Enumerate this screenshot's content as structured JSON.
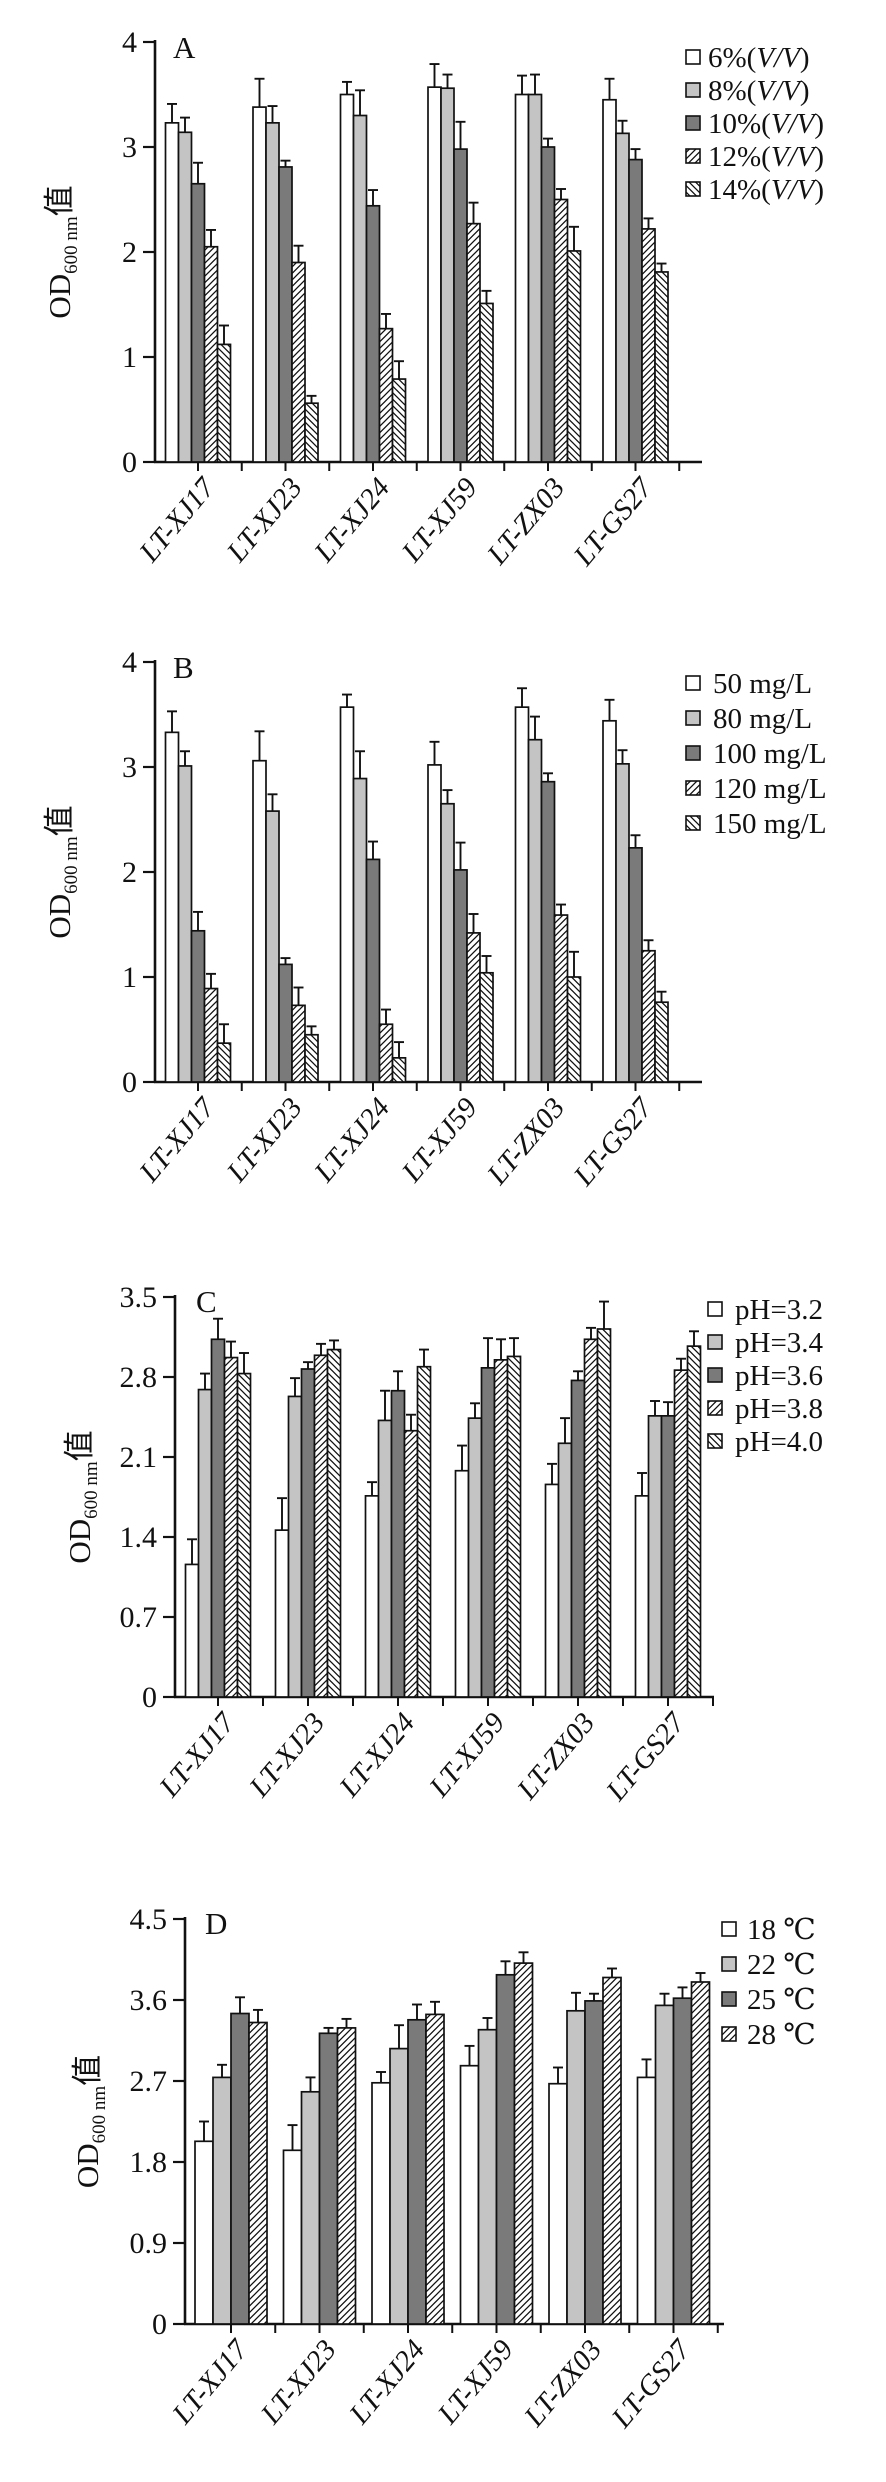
{
  "figure": {
    "background": "#ffffff",
    "text_color": "#111111",
    "y_axis_label": {
      "main": "OD",
      "sub": "600 nm",
      "suffix": "值"
    },
    "categories": [
      "LT-XJ17",
      "LT-XJ23",
      "LT-XJ24",
      "LT-XJ59",
      "LT-ZX03",
      "LT-GS27"
    ],
    "colors": {
      "bar_white": "#ffffff",
      "bar_light_gray": "#c4c4c4",
      "bar_dark_gray": "#7a7a7a",
      "stroke": "#111111"
    }
  },
  "chart_data": [
    {
      "type": "bar",
      "panel_label": "A",
      "title": "Ethanol tolerance (OD600 by ethanol %, V/V)",
      "xlabel": "",
      "ylabel": "OD600 nm 值",
      "ylim": [
        0,
        4
      ],
      "yticks": [
        0,
        1,
        2,
        3,
        4
      ],
      "ytick_labels": [
        "0",
        "1",
        "2",
        "3",
        "4"
      ],
      "grid": false,
      "legend_position": "top-right",
      "error_bars": "plus",
      "categories": [
        "LT-XJ17",
        "LT-XJ23",
        "LT-XJ24",
        "LT-XJ59",
        "LT-ZX03",
        "LT-GS27"
      ],
      "series": [
        {
          "pre": "6%(",
          "italic": "V/V",
          "post": ")",
          "fill": "#ffffff",
          "pattern": "none",
          "values": [
            3.23,
            3.38,
            3.5,
            3.57,
            3.5,
            3.45
          ],
          "errors": [
            0.18,
            0.27,
            0.12,
            0.22,
            0.18,
            0.2
          ]
        },
        {
          "pre": "8%(",
          "italic": "V/V",
          "post": ")",
          "fill": "#c4c4c4",
          "pattern": "none",
          "values": [
            3.14,
            3.23,
            3.3,
            3.56,
            3.5,
            3.13
          ],
          "errors": [
            0.14,
            0.16,
            0.24,
            0.13,
            0.19,
            0.12
          ]
        },
        {
          "pre": "10%(",
          "italic": "V/V",
          "post": ")",
          "fill": "#7a7a7a",
          "pattern": "none",
          "values": [
            2.65,
            2.81,
            2.44,
            2.98,
            3.0,
            2.88
          ],
          "errors": [
            0.2,
            0.06,
            0.15,
            0.26,
            0.08,
            0.1
          ]
        },
        {
          "pre": "12%(",
          "italic": "V/V",
          "post": ")",
          "fill": "#ffffff",
          "pattern": "diag-up",
          "values": [
            2.05,
            1.9,
            1.27,
            2.27,
            2.5,
            2.22
          ],
          "errors": [
            0.16,
            0.16,
            0.14,
            0.2,
            0.1,
            0.1
          ]
        },
        {
          "pre": "14%(",
          "italic": "V/V",
          "post": ")",
          "fill": "#ffffff",
          "pattern": "diag-down",
          "values": [
            1.12,
            0.56,
            0.79,
            1.51,
            2.01,
            1.81
          ],
          "errors": [
            0.18,
            0.07,
            0.17,
            0.12,
            0.23,
            0.08
          ]
        }
      ]
    },
    {
      "type": "bar",
      "panel_label": "B",
      "title": "SO2 tolerance (OD600 by mg/L)",
      "xlabel": "",
      "ylabel": "OD600 nm 值",
      "ylim": [
        0,
        4
      ],
      "yticks": [
        0,
        1,
        2,
        3,
        4
      ],
      "ytick_labels": [
        "0",
        "1",
        "2",
        "3",
        "4"
      ],
      "grid": false,
      "legend_position": "top-right",
      "error_bars": "plus",
      "categories": [
        "LT-XJ17",
        "LT-XJ23",
        "LT-XJ24",
        "LT-XJ59",
        "LT-ZX03",
        "LT-GS27"
      ],
      "series": [
        {
          "pre": "50 mg/L",
          "italic": "",
          "post": "",
          "fill": "#ffffff",
          "pattern": "none",
          "values": [
            3.33,
            3.06,
            3.57,
            3.02,
            3.57,
            3.44
          ],
          "errors": [
            0.2,
            0.28,
            0.12,
            0.22,
            0.18,
            0.2
          ]
        },
        {
          "pre": "80 mg/L",
          "italic": "",
          "post": "",
          "fill": "#c4c4c4",
          "pattern": "none",
          "values": [
            3.01,
            2.58,
            2.89,
            2.65,
            3.26,
            3.03
          ],
          "errors": [
            0.14,
            0.16,
            0.26,
            0.13,
            0.22,
            0.13
          ]
        },
        {
          "pre": "100 mg/L",
          "italic": "",
          "post": "",
          "fill": "#7a7a7a",
          "pattern": "none",
          "values": [
            1.44,
            1.12,
            2.12,
            2.02,
            2.86,
            2.23
          ],
          "errors": [
            0.18,
            0.06,
            0.17,
            0.26,
            0.08,
            0.12
          ]
        },
        {
          "pre": "120 mg/L",
          "italic": "",
          "post": "",
          "fill": "#ffffff",
          "pattern": "diag-up",
          "values": [
            0.89,
            0.73,
            0.55,
            1.42,
            1.59,
            1.25
          ],
          "errors": [
            0.14,
            0.17,
            0.14,
            0.18,
            0.1,
            0.1
          ]
        },
        {
          "pre": "150 mg/L",
          "italic": "",
          "post": "",
          "fill": "#ffffff",
          "pattern": "diag-down",
          "values": [
            0.37,
            0.45,
            0.23,
            1.04,
            1.0,
            0.76
          ],
          "errors": [
            0.18,
            0.08,
            0.15,
            0.16,
            0.24,
            0.1
          ]
        }
      ]
    },
    {
      "type": "bar",
      "panel_label": "C",
      "title": "pH tolerance (OD600 by pH)",
      "xlabel": "",
      "ylabel": "OD600 nm 值",
      "ylim": [
        0,
        3.5
      ],
      "yticks": [
        0,
        0.7,
        1.4,
        2.1,
        2.8,
        3.5
      ],
      "ytick_labels": [
        "0",
        "0.7",
        "1.4",
        "2.1",
        "2.8",
        "3.5"
      ],
      "grid": false,
      "legend_position": "top-right",
      "error_bars": "plus",
      "categories": [
        "LT-XJ17",
        "LT-XJ23",
        "LT-XJ24",
        "LT-XJ59",
        "LT-ZX03",
        "LT-GS27"
      ],
      "series": [
        {
          "pre": "pH=3.2",
          "italic": "",
          "post": "",
          "fill": "#ffffff",
          "pattern": "none",
          "values": [
            1.16,
            1.46,
            1.76,
            1.98,
            1.86,
            1.76
          ],
          "errors": [
            0.22,
            0.28,
            0.12,
            0.22,
            0.18,
            0.2
          ]
        },
        {
          "pre": "pH=3.4",
          "italic": "",
          "post": "",
          "fill": "#c4c4c4",
          "pattern": "none",
          "values": [
            2.69,
            2.63,
            2.42,
            2.44,
            2.22,
            2.46
          ],
          "errors": [
            0.14,
            0.16,
            0.26,
            0.13,
            0.22,
            0.13
          ]
        },
        {
          "pre": "pH=3.6",
          "italic": "",
          "post": "",
          "fill": "#7a7a7a",
          "pattern": "none",
          "values": [
            3.13,
            2.87,
            2.68,
            2.88,
            2.77,
            2.46
          ],
          "errors": [
            0.18,
            0.06,
            0.17,
            0.26,
            0.08,
            0.12
          ]
        },
        {
          "pre": "pH=3.8",
          "italic": "",
          "post": "",
          "fill": "#ffffff",
          "pattern": "diag-up",
          "values": [
            2.97,
            2.99,
            2.33,
            2.95,
            3.13,
            2.86
          ],
          "errors": [
            0.14,
            0.1,
            0.14,
            0.18,
            0.1,
            0.1
          ]
        },
        {
          "pre": "pH=4.0",
          "italic": "",
          "post": "",
          "fill": "#ffffff",
          "pattern": "diag-down",
          "values": [
            2.83,
            3.04,
            2.89,
            2.98,
            3.22,
            3.07
          ],
          "errors": [
            0.18,
            0.08,
            0.15,
            0.16,
            0.24,
            0.13
          ]
        }
      ]
    },
    {
      "type": "bar",
      "panel_label": "D",
      "title": "Temperature tolerance (OD600 by °C)",
      "xlabel": "",
      "ylabel": "OD600 nm 值",
      "ylim": [
        0,
        4.5
      ],
      "yticks": [
        0,
        0.9,
        1.8,
        2.7,
        3.6,
        4.5
      ],
      "ytick_labels": [
        "0",
        "0.9",
        "1.8",
        "2.7",
        "3.6",
        "4.5"
      ],
      "grid": false,
      "legend_position": "top-right",
      "error_bars": "plus",
      "categories": [
        "LT-XJ17",
        "LT-XJ23",
        "LT-XJ24",
        "LT-XJ59",
        "LT-ZX03",
        "LT-GS27"
      ],
      "series": [
        {
          "pre": "18 ℃",
          "italic": "",
          "post": "",
          "fill": "#ffffff",
          "pattern": "none",
          "values": [
            2.03,
            1.93,
            2.68,
            2.87,
            2.67,
            2.74
          ],
          "errors": [
            0.22,
            0.28,
            0.12,
            0.22,
            0.18,
            0.2
          ]
        },
        {
          "pre": "22 ℃",
          "italic": "",
          "post": "",
          "fill": "#c4c4c4",
          "pattern": "none",
          "values": [
            2.74,
            2.58,
            3.06,
            3.27,
            3.48,
            3.54
          ],
          "errors": [
            0.14,
            0.16,
            0.26,
            0.13,
            0.2,
            0.13
          ]
        },
        {
          "pre": "25 ℃",
          "italic": "",
          "post": "",
          "fill": "#7a7a7a",
          "pattern": "none",
          "values": [
            3.45,
            3.23,
            3.38,
            3.88,
            3.59,
            3.62
          ],
          "errors": [
            0.18,
            0.06,
            0.17,
            0.15,
            0.08,
            0.12
          ]
        },
        {
          "pre": "28 ℃",
          "italic": "",
          "post": "",
          "fill": "#ffffff",
          "pattern": "diag-up",
          "values": [
            3.35,
            3.29,
            3.44,
            4.01,
            3.85,
            3.8
          ],
          "errors": [
            0.14,
            0.1,
            0.14,
            0.12,
            0.1,
            0.1
          ]
        }
      ]
    }
  ]
}
